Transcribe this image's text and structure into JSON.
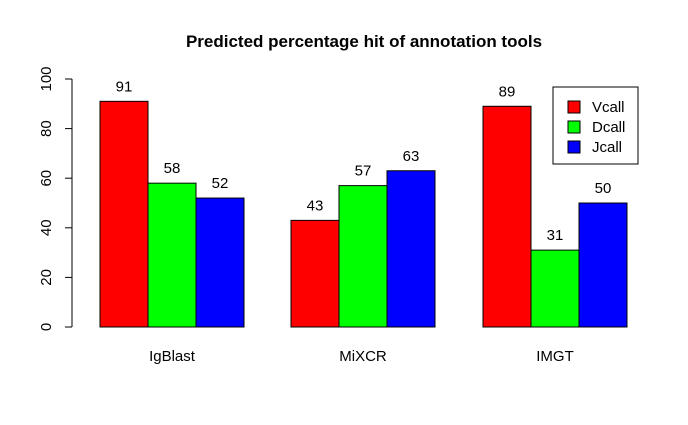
{
  "chart_data": {
    "type": "bar",
    "title": "Predicted percentage hit of annotation tools",
    "xlabel": "",
    "ylabel": "",
    "categories": [
      "IgBlast",
      "MiXCR",
      "IMGT"
    ],
    "series": [
      {
        "name": "Vcall",
        "color": "#ff0000",
        "values": [
          91,
          43,
          89
        ]
      },
      {
        "name": "Dcall",
        "color": "#00ff00",
        "values": [
          58,
          57,
          31
        ]
      },
      {
        "name": "Jcall",
        "color": "#0000ff",
        "values": [
          52,
          63,
          50
        ]
      }
    ],
    "ylim": [
      0,
      100
    ],
    "yticks": [
      "0",
      "20",
      "40",
      "60",
      "80",
      "100"
    ],
    "grid": false,
    "legend_position": "top-right",
    "data_labels": true
  }
}
